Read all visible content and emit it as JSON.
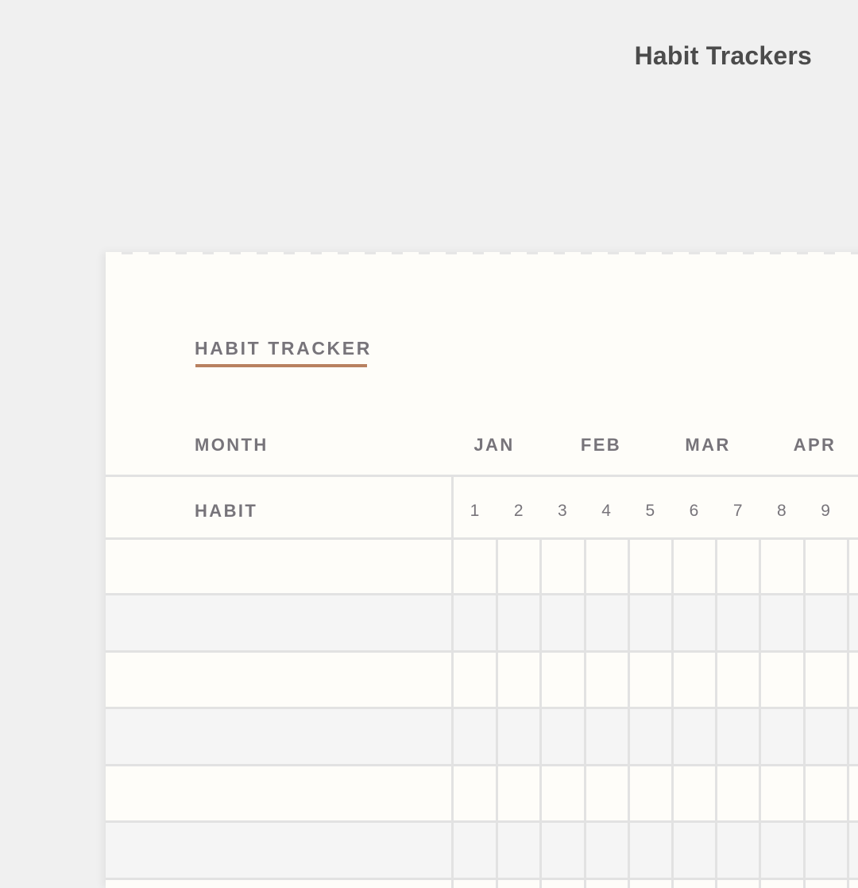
{
  "header": {
    "title": "Habit Trackers"
  },
  "tracker": {
    "title": "Habit Tracker",
    "title_display": "HABIT TRACKER",
    "accent_color": "#b88160",
    "month_label": "MONTH",
    "habit_label": "HABIT",
    "months": [
      "JAN",
      "FEB",
      "MAR",
      "APR"
    ],
    "days": [
      "1",
      "2",
      "3",
      "4",
      "5",
      "6",
      "7",
      "8",
      "9"
    ],
    "row_count_visible": 6
  }
}
